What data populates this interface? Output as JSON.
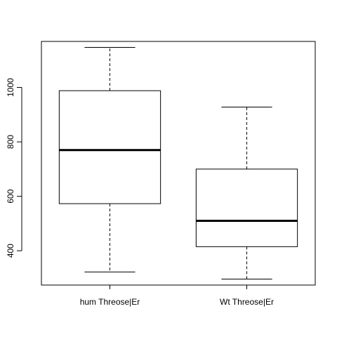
{
  "chart_data": {
    "type": "boxplot",
    "title": "",
    "xlabel": "",
    "ylabel": "",
    "categories": [
      "hum Threose|Er",
      "Wt Threose|Er"
    ],
    "boxes": [
      {
        "name": "hum Threose|Er",
        "whisker_low": 322,
        "q1": 573,
        "median": 770,
        "q3": 988,
        "whisker_high": 1147
      },
      {
        "name": "Wt Threose|Er",
        "whisker_low": 296,
        "q1": 415,
        "median": 510,
        "q3": 700,
        "whisker_high": 928
      }
    ],
    "yticks": [
      400,
      600,
      800,
      1000
    ],
    "ylim": [
      274,
      1169
    ],
    "grid": false,
    "legend": "none",
    "colors": {
      "box_stroke": "#000000",
      "median": "#000000",
      "background": "#ffffff"
    }
  }
}
